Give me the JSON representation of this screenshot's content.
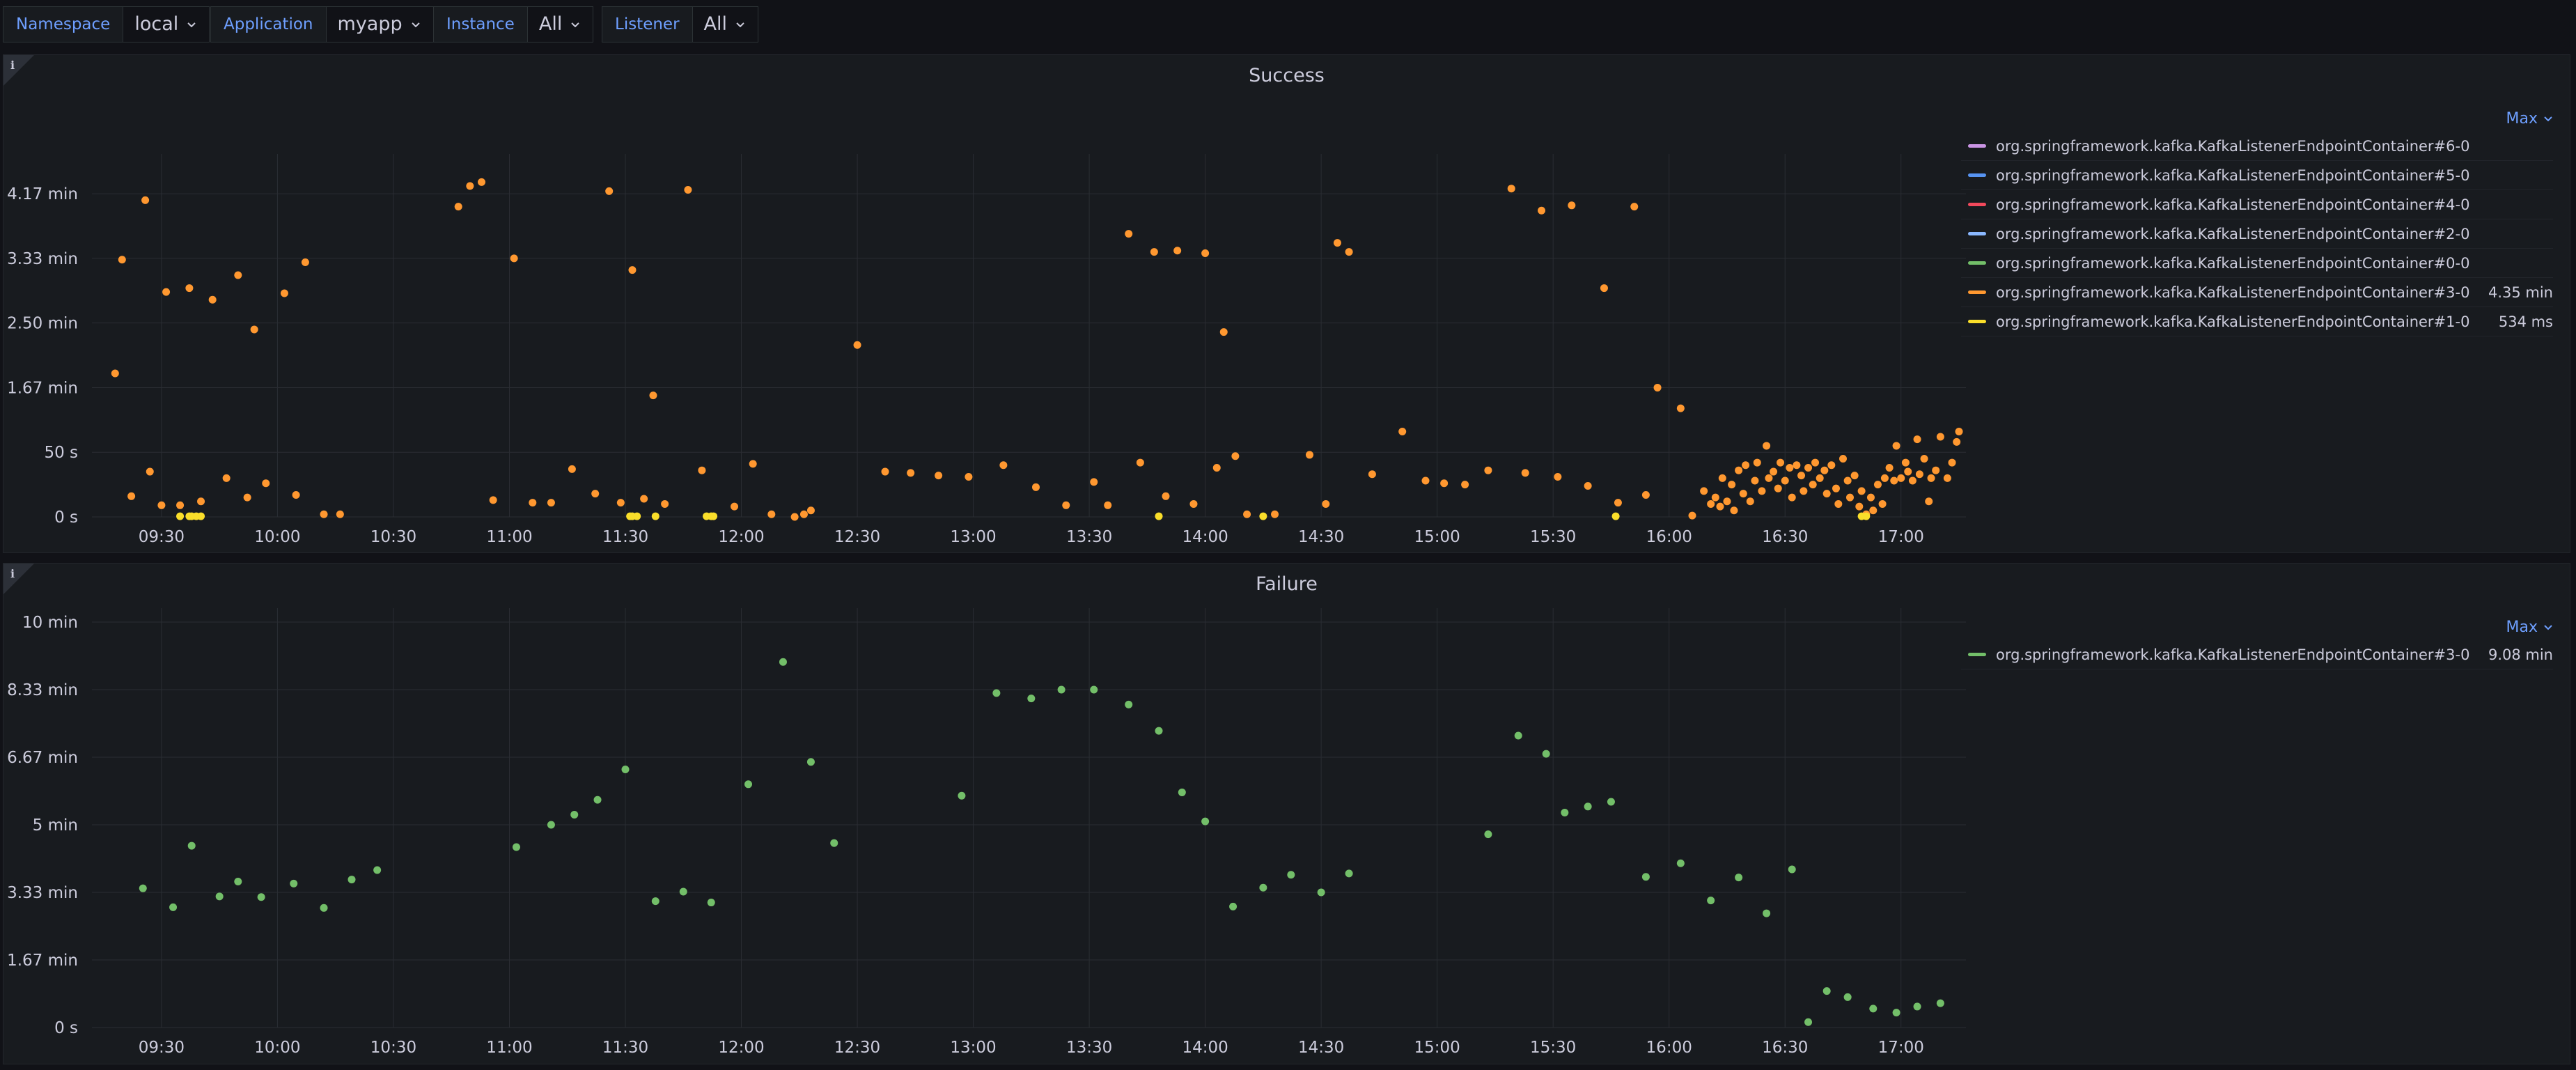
{
  "variables": [
    {
      "label": "Namespace",
      "value": "local"
    },
    {
      "label": "Application",
      "value": "myapp"
    },
    {
      "label": "Instance",
      "value": "All"
    },
    {
      "label": "Listener",
      "value": "All"
    }
  ],
  "info_glyph": "i",
  "colors": {
    "background": "#111217",
    "panel": "#181b1f",
    "accent": "#6e9fff",
    "grid": "#2a2d33",
    "orange": "#ff9830",
    "yellow": "#fade2a",
    "green": "#73bf69",
    "purple": "#ca95e5",
    "blue": "#5794f2",
    "red": "#f2495c",
    "lightblue": "#8ab8ff"
  },
  "panels": [
    {
      "title": "Success",
      "legend_header": "Max",
      "legend": [
        {
          "name": "org.springframework.kafka.KafkaListenerEndpointContainer#6-0",
          "max": "",
          "color": "#ca95e5"
        },
        {
          "name": "org.springframework.kafka.KafkaListenerEndpointContainer#5-0",
          "max": "",
          "color": "#5794f2"
        },
        {
          "name": "org.springframework.kafka.KafkaListenerEndpointContainer#4-0",
          "max": "",
          "color": "#f2495c"
        },
        {
          "name": "org.springframework.kafka.KafkaListenerEndpointContainer#2-0",
          "max": "",
          "color": "#8ab8ff"
        },
        {
          "name": "org.springframework.kafka.KafkaListenerEndpointContainer#0-0",
          "max": "",
          "color": "#73bf69"
        },
        {
          "name": "org.springframework.kafka.KafkaListenerEndpointContainer#3-0",
          "max": "4.35 min",
          "color": "#ff9830"
        },
        {
          "name": "org.springframework.kafka.KafkaListenerEndpointContainer#1-0",
          "max": "534 ms",
          "color": "#fade2a"
        }
      ]
    },
    {
      "title": "Failure",
      "legend_header": "Max",
      "legend": [
        {
          "name": "org.springframework.kafka.KafkaListenerEndpointContainer#3-0",
          "max": "9.08 min",
          "color": "#73bf69"
        }
      ]
    }
  ],
  "chart_data": [
    {
      "type": "scatter",
      "title": "Success",
      "x_unit": "hours of day",
      "x_ticks": [
        9.5,
        10,
        10.5,
        11,
        11.5,
        12,
        12.5,
        13,
        13.5,
        14,
        14.5,
        15,
        15.5,
        16,
        16.5,
        17
      ],
      "x_tick_labels": [
        "09:30",
        "10:00",
        "10:30",
        "11:00",
        "11:30",
        "12:00",
        "12:30",
        "13:00",
        "13:30",
        "14:00",
        "14:30",
        "15:00",
        "15:30",
        "16:00",
        "16:30",
        "17:00"
      ],
      "xlim": [
        9.2,
        17.28
      ],
      "y_unit": "seconds",
      "y_ticks": [
        0,
        50,
        100,
        150,
        200,
        250
      ],
      "y_tick_labels": [
        "0 s",
        "50 s",
        "1.67 min",
        "2.50 min",
        "3.33 min",
        "4.17 min"
      ],
      "ylim": [
        0,
        270
      ],
      "grid": true,
      "legend_placement": "right",
      "series": [
        {
          "name": "org.springframework.kafka.KafkaListenerEndpointContainer#3-0",
          "color": "#ff9830",
          "points": [
            [
              9.3,
              111
            ],
            [
              9.33,
              199
            ],
            [
              9.37,
              16
            ],
            [
              9.43,
              245
            ],
            [
              9.45,
              35
            ],
            [
              9.5,
              9
            ],
            [
              9.52,
              174
            ],
            [
              9.58,
              9
            ],
            [
              9.62,
              177
            ],
            [
              9.67,
              12
            ],
            [
              9.72,
              168
            ],
            [
              9.78,
              30
            ],
            [
              9.83,
              187
            ],
            [
              9.87,
              15
            ],
            [
              9.9,
              145
            ],
            [
              9.95,
              26
            ],
            [
              10.03,
              173
            ],
            [
              10.08,
              17
            ],
            [
              10.12,
              197
            ],
            [
              10.2,
              2
            ],
            [
              10.27,
              2
            ],
            [
              10.78,
              240
            ],
            [
              10.83,
              256
            ],
            [
              10.88,
              259
            ],
            [
              10.93,
              13
            ],
            [
              11.02,
              200
            ],
            [
              11.1,
              11
            ],
            [
              11.18,
              11
            ],
            [
              11.27,
              37
            ],
            [
              11.37,
              18
            ],
            [
              11.43,
              252
            ],
            [
              11.48,
              11
            ],
            [
              11.53,
              191
            ],
            [
              11.58,
              14
            ],
            [
              11.62,
              94
            ],
            [
              11.67,
              10
            ],
            [
              11.77,
              253
            ],
            [
              11.83,
              36
            ],
            [
              11.97,
              8
            ],
            [
              12.05,
              41
            ],
            [
              12.13,
              2
            ],
            [
              12.23,
              0
            ],
            [
              12.27,
              2
            ],
            [
              12.3,
              5
            ],
            [
              12.5,
              133
            ],
            [
              12.62,
              35
            ],
            [
              12.73,
              34
            ],
            [
              12.85,
              32
            ],
            [
              12.98,
              31
            ],
            [
              13.13,
              40
            ],
            [
              13.27,
              23
            ],
            [
              13.4,
              9
            ],
            [
              13.52,
              27
            ],
            [
              13.58,
              9
            ],
            [
              13.67,
              219
            ],
            [
              13.72,
              42
            ],
            [
              13.78,
              205
            ],
            [
              13.83,
              16
            ],
            [
              13.88,
              206
            ],
            [
              13.95,
              10
            ],
            [
              14.0,
              204
            ],
            [
              14.05,
              38
            ],
            [
              14.08,
              143
            ],
            [
              14.13,
              47
            ],
            [
              14.18,
              2
            ],
            [
              14.3,
              2
            ],
            [
              14.45,
              48
            ],
            [
              14.52,
              10
            ],
            [
              14.57,
              212
            ],
            [
              14.62,
              205
            ],
            [
              14.72,
              33
            ],
            [
              14.85,
              66
            ],
            [
              14.95,
              28
            ],
            [
              15.03,
              26
            ],
            [
              15.12,
              25
            ],
            [
              15.22,
              36
            ],
            [
              15.32,
              254
            ],
            [
              15.38,
              34
            ],
            [
              15.45,
              237
            ],
            [
              15.52,
              31
            ],
            [
              15.58,
              241
            ],
            [
              15.65,
              24
            ],
            [
              15.72,
              177
            ],
            [
              15.78,
              11
            ],
            [
              15.85,
              240
            ],
            [
              15.9,
              17
            ],
            [
              15.95,
              100
            ],
            [
              16.05,
              84
            ],
            [
              16.1,
              1
            ],
            [
              16.15,
              20
            ],
            [
              16.18,
              10
            ],
            [
              16.2,
              15
            ],
            [
              16.22,
              8
            ],
            [
              16.23,
              30
            ],
            [
              16.25,
              12
            ],
            [
              16.27,
              25
            ],
            [
              16.28,
              5
            ],
            [
              16.3,
              36
            ],
            [
              16.32,
              18
            ],
            [
              16.33,
              40
            ],
            [
              16.35,
              12
            ],
            [
              16.37,
              28
            ],
            [
              16.38,
              42
            ],
            [
              16.4,
              20
            ],
            [
              16.42,
              55
            ],
            [
              16.43,
              30
            ],
            [
              16.45,
              35
            ],
            [
              16.47,
              22
            ],
            [
              16.48,
              42
            ],
            [
              16.5,
              28
            ],
            [
              16.52,
              38
            ],
            [
              16.53,
              15
            ],
            [
              16.55,
              40
            ],
            [
              16.57,
              32
            ],
            [
              16.58,
              20
            ],
            [
              16.6,
              38
            ],
            [
              16.62,
              25
            ],
            [
              16.63,
              42
            ],
            [
              16.65,
              30
            ],
            [
              16.67,
              36
            ],
            [
              16.68,
              18
            ],
            [
              16.7,
              40
            ],
            [
              16.72,
              22
            ],
            [
              16.73,
              10
            ],
            [
              16.75,
              45
            ],
            [
              16.77,
              28
            ],
            [
              16.78,
              15
            ],
            [
              16.8,
              32
            ],
            [
              16.82,
              8
            ],
            [
              16.83,
              20
            ],
            [
              16.85,
              2
            ],
            [
              16.87,
              15
            ],
            [
              16.88,
              5
            ],
            [
              16.9,
              25
            ],
            [
              16.92,
              10
            ],
            [
              16.93,
              30
            ],
            [
              16.95,
              38
            ],
            [
              16.97,
              28
            ],
            [
              16.98,
              55
            ],
            [
              17.0,
              30
            ],
            [
              17.02,
              42
            ],
            [
              17.03,
              35
            ],
            [
              17.05,
              28
            ],
            [
              17.07,
              60
            ],
            [
              17.08,
              33
            ],
            [
              17.1,
              45
            ],
            [
              17.12,
              12
            ],
            [
              17.13,
              30
            ],
            [
              17.15,
              36
            ],
            [
              17.17,
              62
            ],
            [
              17.2,
              30
            ],
            [
              17.22,
              42
            ],
            [
              17.24,
              58
            ],
            [
              17.25,
              66
            ]
          ]
        },
        {
          "name": "org.springframework.kafka.KafkaListenerEndpointContainer#1-0",
          "color": "#fade2a",
          "points": [
            [
              9.58,
              0.5
            ],
            [
              9.62,
              0.5
            ],
            [
              9.63,
              0.5
            ],
            [
              9.65,
              0.5
            ],
            [
              9.67,
              0.5
            ],
            [
              11.52,
              0.5
            ],
            [
              11.53,
              0.5
            ],
            [
              11.55,
              0.5
            ],
            [
              11.63,
              0.5
            ],
            [
              11.85,
              0.5
            ],
            [
              11.87,
              0.5
            ],
            [
              11.88,
              0.5
            ],
            [
              13.8,
              0.5
            ],
            [
              14.25,
              0.5
            ],
            [
              15.77,
              0.5
            ],
            [
              16.83,
              0.5
            ],
            [
              16.85,
              0.5
            ]
          ]
        }
      ]
    },
    {
      "type": "scatter",
      "title": "Failure",
      "x_unit": "hours of day",
      "x_ticks": [
        9.5,
        10,
        10.5,
        11,
        11.5,
        12,
        12.5,
        13,
        13.5,
        14,
        14.5,
        15,
        15.5,
        16,
        16.5,
        17
      ],
      "x_tick_labels": [
        "09:30",
        "10:00",
        "10:30",
        "11:00",
        "11:30",
        "12:00",
        "12:30",
        "13:00",
        "13:30",
        "14:00",
        "14:30",
        "15:00",
        "15:30",
        "16:00",
        "16:30",
        "17:00"
      ],
      "xlim": [
        9.2,
        17.28
      ],
      "y_unit": "seconds",
      "y_ticks": [
        0,
        100,
        200,
        300,
        400,
        500,
        600
      ],
      "y_tick_labels": [
        "0 s",
        "1.67 min",
        "3.33 min",
        "5 min",
        "6.67 min",
        "8.33 min",
        "10 min"
      ],
      "ylim": [
        0,
        600
      ],
      "grid": true,
      "legend_placement": "right",
      "series": [
        {
          "name": "org.springframework.kafka.KafkaListenerEndpointContainer#3-0",
          "color": "#73bf69",
          "points": [
            [
              9.42,
              206
            ],
            [
              9.55,
              178
            ],
            [
              9.63,
              269
            ],
            [
              9.75,
              194
            ],
            [
              9.83,
              216
            ],
            [
              9.93,
              193
            ],
            [
              10.07,
              213
            ],
            [
              10.2,
              177
            ],
            [
              10.32,
              219
            ],
            [
              10.43,
              233
            ],
            [
              11.03,
              267
            ],
            [
              11.18,
              300
            ],
            [
              11.28,
              315
            ],
            [
              11.38,
              337
            ],
            [
              11.5,
              382
            ],
            [
              11.63,
              187
            ],
            [
              11.75,
              201
            ],
            [
              11.87,
              185
            ],
            [
              12.03,
              360
            ],
            [
              12.18,
              541
            ],
            [
              12.3,
              393
            ],
            [
              12.4,
              273
            ],
            [
              12.95,
              343
            ],
            [
              13.1,
              495
            ],
            [
              13.25,
              487
            ],
            [
              13.38,
              500
            ],
            [
              13.52,
              500
            ],
            [
              13.67,
              478
            ],
            [
              13.8,
              439
            ],
            [
              13.9,
              348
            ],
            [
              14.0,
              305
            ],
            [
              14.12,
              179
            ],
            [
              14.25,
              207
            ],
            [
              14.37,
              226
            ],
            [
              14.5,
              200
            ],
            [
              14.62,
              228
            ],
            [
              15.22,
              286
            ],
            [
              15.35,
              432
            ],
            [
              15.47,
              405
            ],
            [
              15.55,
              318
            ],
            [
              15.65,
              327
            ],
            [
              15.75,
              334
            ],
            [
              15.9,
              223
            ],
            [
              16.05,
              243
            ],
            [
              16.18,
              188
            ],
            [
              16.3,
              222
            ],
            [
              16.42,
              169
            ],
            [
              16.53,
              234
            ],
            [
              16.6,
              8
            ],
            [
              16.68,
              54
            ],
            [
              16.77,
              45
            ],
            [
              16.88,
              28
            ],
            [
              16.98,
              22
            ],
            [
              17.07,
              31
            ],
            [
              17.17,
              36
            ]
          ]
        }
      ]
    }
  ]
}
